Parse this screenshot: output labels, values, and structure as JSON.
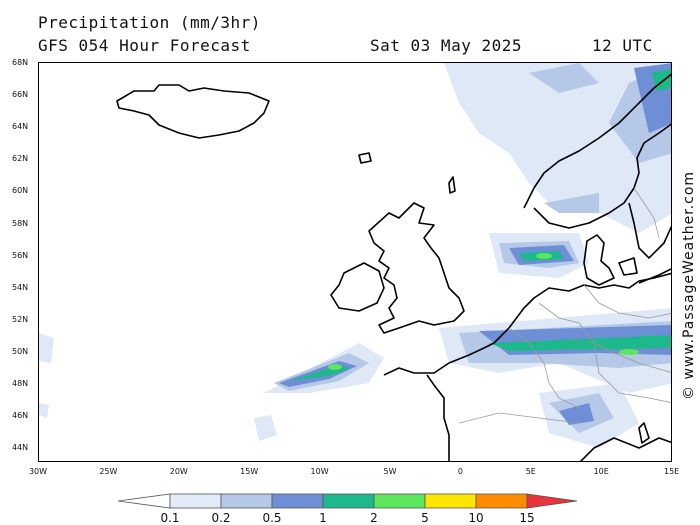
{
  "header": {
    "title": "Precipitation (mm/3hr)",
    "subtitle": "GFS 054 Hour Forecast",
    "date": "Sat 03 May 2025",
    "time": "12 UTC"
  },
  "watermark": "© www.PassageWeather.com",
  "axes": {
    "lat_labels": [
      "68N",
      "66N",
      "64N",
      "62N",
      "60N",
      "58N",
      "56N",
      "54N",
      "52N",
      "50N",
      "48N",
      "46N",
      "44N"
    ],
    "lon_labels": [
      "30W",
      "25W",
      "20W",
      "15W",
      "10W",
      "5W",
      "0",
      "5E",
      "10E",
      "15E"
    ]
  },
  "legend": {
    "labels": [
      "0.1",
      "0.2",
      "0.5",
      "1",
      "2",
      "5",
      "10",
      "15"
    ],
    "colors": [
      "#e2ebf7",
      "#b5c8e8",
      "#6e8fd6",
      "#1eb88d",
      "#5ce65c",
      "#ffe600",
      "#ff8c00",
      "#e8343c"
    ]
  },
  "map_colors": {
    "light": "#dfe8f6",
    "medium": "#b5c8e8",
    "blue": "#6e8fd6",
    "green": "#1eb88d",
    "bright": "#5ce65c"
  }
}
